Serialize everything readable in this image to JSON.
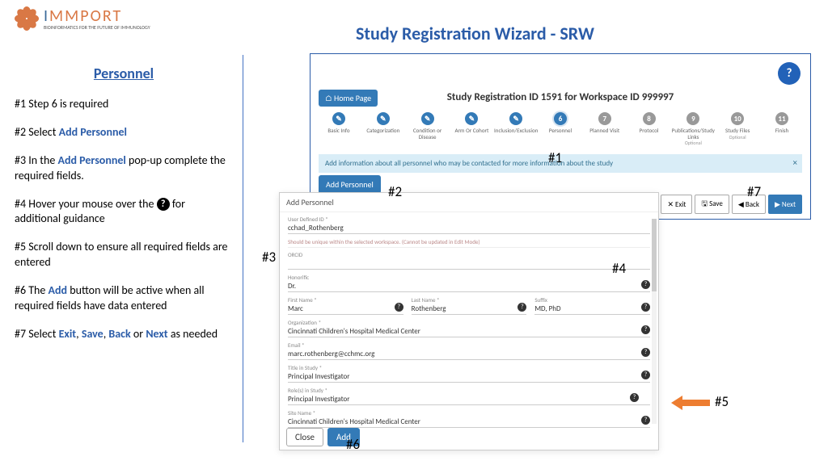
{
  "logo": {
    "prefix": "I",
    "rest": "MMPORT",
    "sub": "BIOINFORMATICS FOR THE FUTURE OF IMMUNOLOGY",
    "petal_color": "#d97845"
  },
  "sidebar": {
    "title": "Personnel",
    "s1": "#1  Step 6 is required",
    "s2a": "#2 Select ",
    "s2b": "Add Personnel",
    "s3a": "#3 In the ",
    "s3b": "Add Personnel",
    "s3c": " pop-up complete the required fields.",
    "s4a": "#4  Hover your mouse over the ",
    "s4c": "  for additional guidance",
    "s5": "#5 Scroll down to ensure all required fields are entered",
    "s6a": "#6  The ",
    "s6b": "Add",
    "s6c": " button will be active when all required fields have data entered",
    "s7a": "#7 Select ",
    "s7b": "Exit",
    "s7c": ", ",
    "s7d": "Save",
    "s7e": ", ",
    "s7f": "Back",
    "s7g": " or ",
    "s7h": "Next",
    "s7i": " as needed"
  },
  "main_title": "Study Registration Wizard - SRW",
  "wizard": {
    "home": "⌂ Home Page",
    "title_a": "Study Registration ID ",
    "title_b": "1591",
    "title_c": " for Workspace ID ",
    "title_d": "999997",
    "steps": [
      {
        "num": "✎",
        "label": "Basic Info",
        "state": "done"
      },
      {
        "num": "✎",
        "label": "Categorization",
        "state": "done"
      },
      {
        "num": "✎",
        "label": "Condition or Disease",
        "state": "done"
      },
      {
        "num": "✎",
        "label": "Arm Or Cohort",
        "state": "done"
      },
      {
        "num": "✎",
        "label": "Inclusion/Exclusion",
        "state": "done"
      },
      {
        "num": "6",
        "label": "Personnel",
        "state": "current"
      },
      {
        "num": "7",
        "label": "Planned Visit",
        "state": "future"
      },
      {
        "num": "8",
        "label": "Protocol",
        "state": "future"
      },
      {
        "num": "9",
        "label": "Publications/Study Links",
        "sub": "Optional",
        "state": "future"
      },
      {
        "num": "10",
        "label": "Study Files",
        "sub": "Optional",
        "state": "future"
      },
      {
        "num": "11",
        "label": "Finish",
        "state": "future"
      }
    ],
    "info": "Add information about all personnel who may be contacted for more information about the study",
    "add_btn": "Add Personnel",
    "exit": "✕ Exit",
    "save": "🖫 Save",
    "back": "◀ Back",
    "next": "▶ Next"
  },
  "popup": {
    "title": "Add Personnel",
    "user_defined_label": "User Defined ID *",
    "user_defined_val": "cchad_Rothenberg",
    "warn": "Should be unique within the selected workspace. (Cannot be updated in Edit Mode)",
    "orcid_label": "ORCID",
    "honorific_label": "Honorific",
    "honorific_val": "Dr.",
    "first_label": "First Name *",
    "first_val": "Marc",
    "last_label": "Last Name *",
    "last_val": "Rothenberg",
    "suffix_label": "Suffix",
    "suffix_val": "MD, PhD",
    "org_label": "Organization *",
    "org_val": "Cincinnati Children's Hospital Medical Center",
    "email_label": "Email *",
    "email_val": "marc.rothenberg@cchmc.org",
    "title_label": "Title in Study *",
    "title_val": "Principal Investigator",
    "role_label": "Role(s) in Study *",
    "role_val": "Principal Investigator",
    "site_label": "Site Name *",
    "site_val": "Cincinnati Children's Hospital Medical Center",
    "close": "Close",
    "add": "Add"
  },
  "callouts": {
    "c1": "#1",
    "c2": "#2",
    "c3": "#3",
    "c4": "#4",
    "c5": "#5",
    "c6": "#6",
    "c7": "#7"
  }
}
